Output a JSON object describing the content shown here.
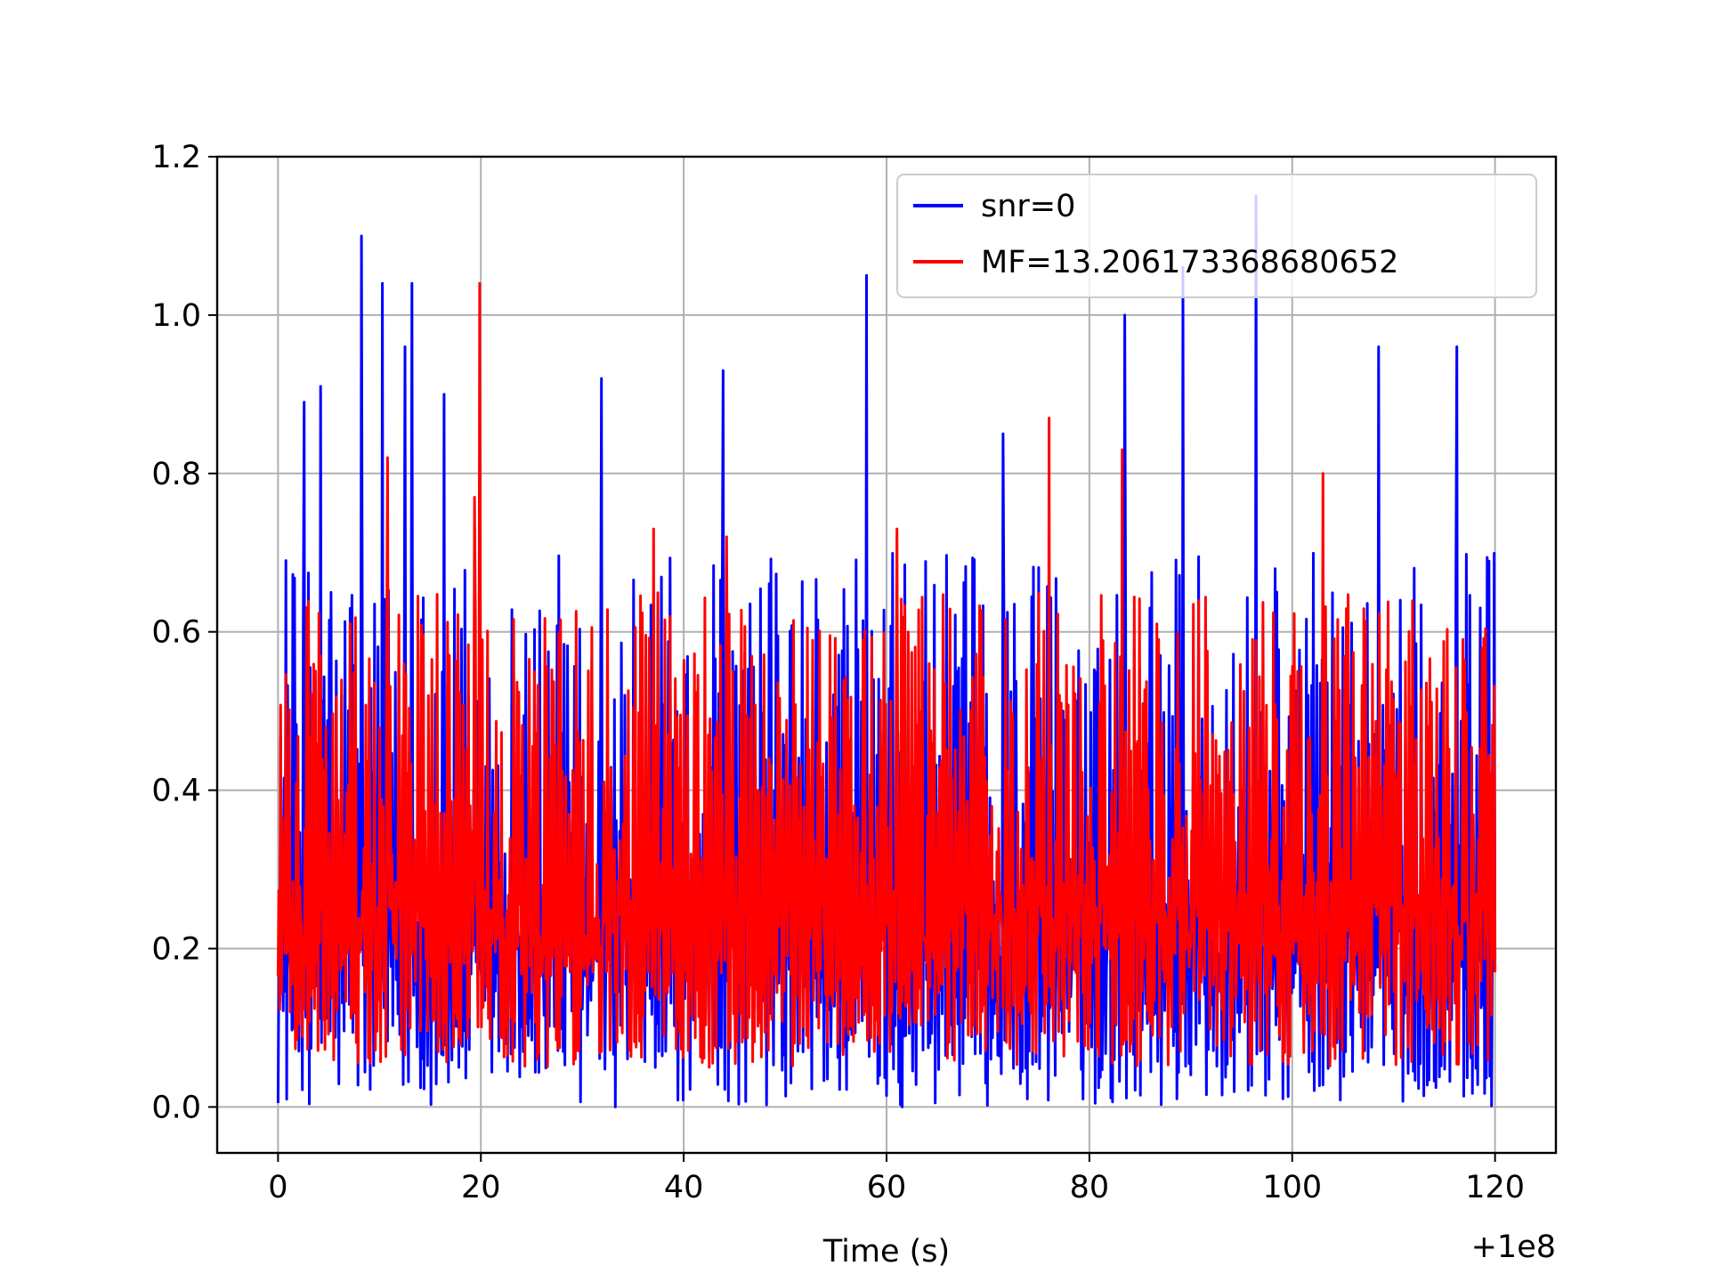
{
  "chart_data": {
    "type": "line",
    "title": "",
    "xlabel": "Time (s)",
    "ylabel": "",
    "x_offset_label": "+1e8",
    "xlim": [
      -6,
      126
    ],
    "ylim": [
      -0.058,
      1.2
    ],
    "xticks": [
      0,
      20,
      40,
      60,
      80,
      100,
      120
    ],
    "xtick_labels": [
      "0",
      "20",
      "40",
      "60",
      "80",
      "100",
      "120"
    ],
    "yticks": [
      0.0,
      0.2,
      0.4,
      0.6,
      0.8,
      1.0,
      1.2
    ],
    "ytick_labels": [
      "0.0",
      "0.2",
      "0.4",
      "0.6",
      "0.8",
      "1.0",
      "1.2"
    ],
    "grid": true,
    "legend_position": "top-right",
    "series": [
      {
        "name": "snr=0",
        "color": "#0000ff",
        "x_range": [
          0,
          120
        ],
        "peaks": [
          {
            "x": 0.8,
            "y": 0.69
          },
          {
            "x": 2.6,
            "y": 0.89
          },
          {
            "x": 4.2,
            "y": 0.91
          },
          {
            "x": 8.2,
            "y": 1.1
          },
          {
            "x": 10.3,
            "y": 1.04
          },
          {
            "x": 12.5,
            "y": 0.96
          },
          {
            "x": 13.2,
            "y": 1.04
          },
          {
            "x": 16.4,
            "y": 0.9
          },
          {
            "x": 31.9,
            "y": 0.92
          },
          {
            "x": 43.9,
            "y": 0.93
          },
          {
            "x": 58.0,
            "y": 1.05
          },
          {
            "x": 71.5,
            "y": 0.85
          },
          {
            "x": 83.5,
            "y": 1.0
          },
          {
            "x": 89.2,
            "y": 1.06
          },
          {
            "x": 96.4,
            "y": 1.15
          },
          {
            "x": 108.5,
            "y": 0.96
          },
          {
            "x": 116.2,
            "y": 0.96
          }
        ],
        "typical_range": [
          0.0,
          0.7
        ]
      },
      {
        "name": "MF=13.206173368680652",
        "color": "#ff0000",
        "x_range": [
          0,
          120
        ],
        "peaks": [
          {
            "x": 10.8,
            "y": 0.82
          },
          {
            "x": 19.9,
            "y": 1.04
          },
          {
            "x": 19.4,
            "y": 0.77
          },
          {
            "x": 76.0,
            "y": 0.87
          },
          {
            "x": 83.2,
            "y": 0.83
          },
          {
            "x": 103.0,
            "y": 0.8
          },
          {
            "x": 44.2,
            "y": 0.72
          },
          {
            "x": 37.0,
            "y": 0.73
          },
          {
            "x": 61.0,
            "y": 0.73
          }
        ],
        "typical_range": [
          0.05,
          0.65
        ]
      }
    ]
  }
}
